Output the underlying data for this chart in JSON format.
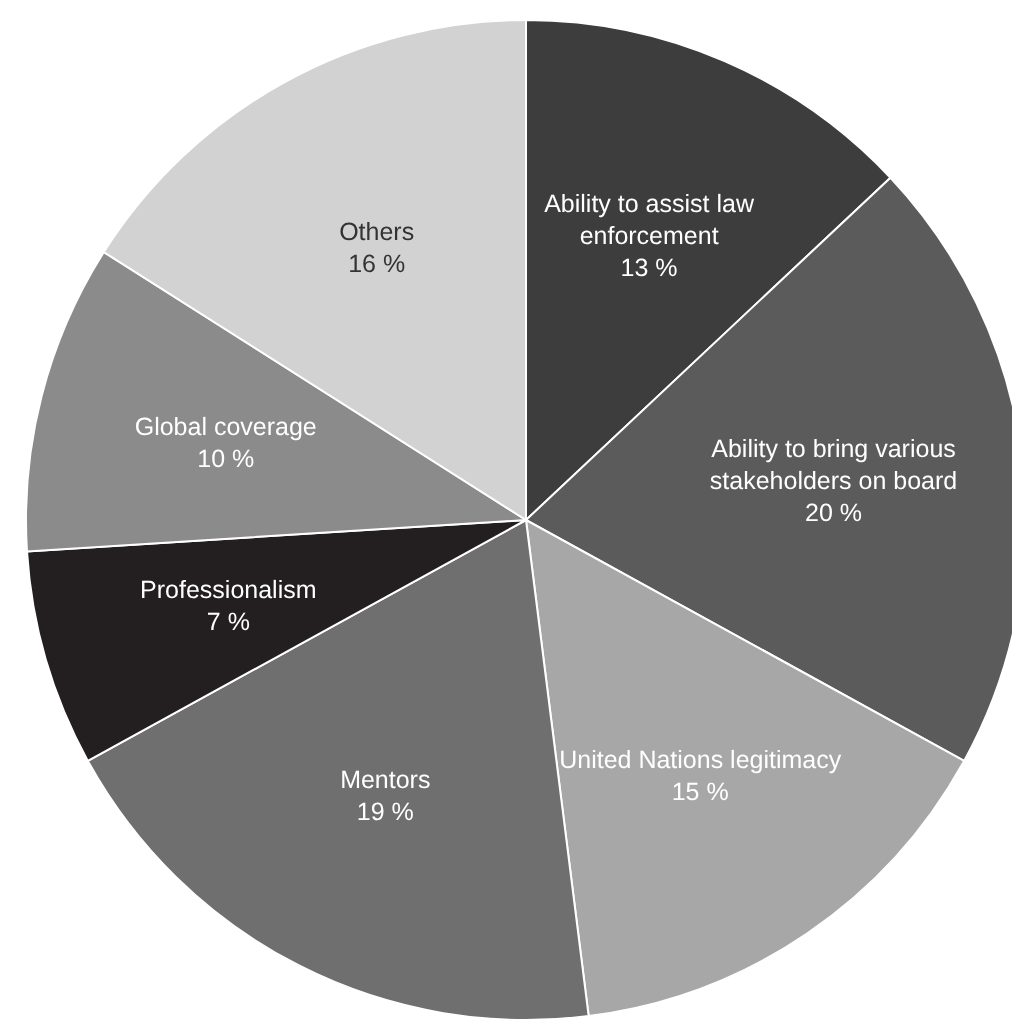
{
  "chart_data": {
    "type": "pie",
    "categories": [
      "Ability to assist law enforcement",
      "Ability to bring various stakeholders on board",
      "United Nations legitimacy",
      "Mentors",
      "Professionalism",
      "Global coverage",
      "Others"
    ],
    "values": [
      13,
      20,
      15,
      19,
      7,
      10,
      16
    ],
    "value_labels": [
      "13 %",
      "20 %",
      "15 %",
      "19 %",
      "7 %",
      "10 %",
      "16 %"
    ],
    "colors": [
      "#3d3d3d",
      "#5b5b5b",
      "#a7a7a7",
      "#6f6f6f",
      "#231f20",
      "#8b8b8b",
      "#d2d2d2"
    ],
    "legend": false
  }
}
